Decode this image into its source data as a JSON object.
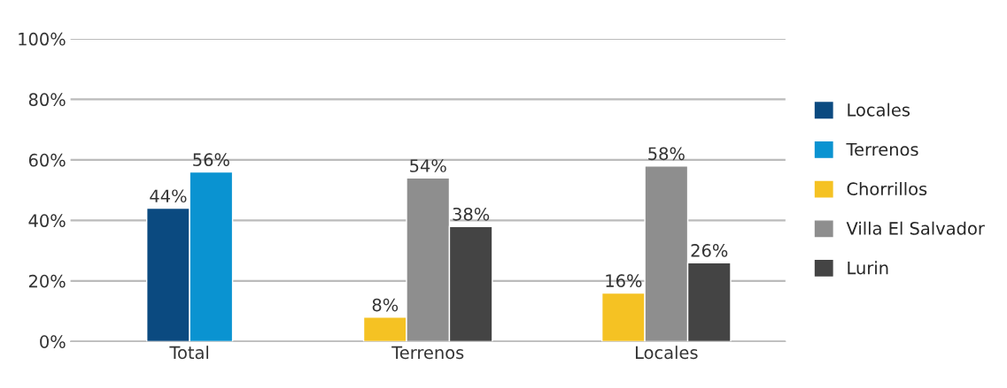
{
  "chart_data": {
    "type": "bar",
    "categories": [
      "Total",
      "Terrenos",
      "Locales"
    ],
    "series": [
      {
        "name": "Locales",
        "color": "#0b4a80",
        "values": [
          44,
          null,
          null
        ],
        "value_labels": [
          "44%",
          null,
          null
        ]
      },
      {
        "name": "Terrenos",
        "color": "#0a93d1",
        "values": [
          56,
          null,
          null
        ],
        "value_labels": [
          "56%",
          null,
          null
        ]
      },
      {
        "name": "Chorrillos",
        "color": "#f5c223",
        "values": [
          null,
          8,
          16
        ],
        "value_labels": [
          null,
          "8%",
          "16%"
        ]
      },
      {
        "name": "Villa El Salvador",
        "color": "#8e8e8e",
        "values": [
          null,
          54,
          58
        ],
        "value_labels": [
          null,
          "54%",
          "58%"
        ]
      },
      {
        "name": "Lurin",
        "color": "#444444",
        "values": [
          null,
          38,
          26
        ],
        "value_labels": [
          null,
          "38%",
          "26%"
        ]
      }
    ],
    "ylim": [
      0,
      100
    ],
    "yticks": [
      {
        "value": 0,
        "label": "0%"
      },
      {
        "value": 20,
        "label": "20%"
      },
      {
        "value": 40,
        "label": "40%"
      },
      {
        "value": 60,
        "label": "60%"
      },
      {
        "value": 80,
        "label": "80%"
      },
      {
        "value": 100,
        "label": "100%"
      }
    ],
    "grid": "y",
    "legend": "right"
  }
}
